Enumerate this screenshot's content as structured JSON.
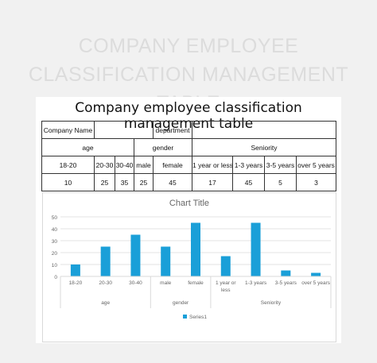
{
  "banner": {
    "line1": "COMPANY EMPLOYEE",
    "line2": "CLASSIFICATION MANAGEMENT TABLE"
  },
  "sheet": {
    "title": "Company employee classification management table",
    "row1": {
      "company_name_label": "Company Name",
      "company_name_value": "",
      "department_label": "department",
      "department_value": ""
    },
    "groups": {
      "age": "age",
      "gender": "gender",
      "seniority": "Seniority"
    },
    "headers": [
      "18-20",
      "20-30",
      "30-40",
      "male",
      "female",
      "1 year or less",
      "1-3 years",
      "3-5 years",
      "over 5 years"
    ],
    "values": [
      "10",
      "25",
      "35",
      "25",
      "45",
      "17",
      "45",
      "5",
      "3"
    ]
  },
  "chart_data": {
    "type": "bar",
    "title": "Chart Title",
    "categories": [
      "18-20",
      "20-30",
      "30-40",
      "male",
      "female",
      "1 year or less",
      "1-3 years",
      "3-5 years",
      "over 5 years"
    ],
    "category_display": [
      [
        "18-20"
      ],
      [
        "20-30"
      ],
      [
        "30-40"
      ],
      [
        "male"
      ],
      [
        "female"
      ],
      [
        "1 year or",
        "less"
      ],
      [
        "1-3 years"
      ],
      [
        "3-5 years"
      ],
      [
        "over 5 years"
      ]
    ],
    "groups": [
      {
        "name": "age",
        "start": 0,
        "end": 2
      },
      {
        "name": "gender",
        "start": 3,
        "end": 4
      },
      {
        "name": "Seniority",
        "start": 5,
        "end": 8
      }
    ],
    "series": [
      {
        "name": "Series1",
        "values": [
          10,
          25,
          35,
          25,
          45,
          17,
          45,
          5,
          3
        ]
      }
    ],
    "yticks": [
      0,
      10,
      20,
      30,
      40,
      50
    ],
    "ylim": [
      0,
      50
    ],
    "grid": true,
    "legend": "bottom",
    "color": "#1a9fd8"
  }
}
